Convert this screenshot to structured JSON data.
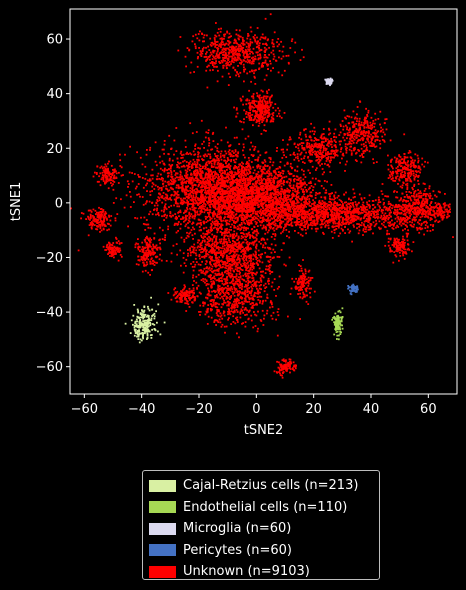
{
  "chart_data": {
    "type": "scatter",
    "title": "",
    "xlabel": "tSNE2",
    "ylabel": "tSNE1",
    "xlim": [
      -65,
      70
    ],
    "ylim": [
      -70,
      71
    ],
    "xticks": [
      -60,
      -40,
      -20,
      0,
      20,
      40,
      60
    ],
    "yticks": [
      -60,
      -40,
      -20,
      0,
      20,
      40,
      60
    ],
    "xtick_labels": [
      "−60",
      "−40",
      "−20",
      "0",
      "20",
      "40",
      "60"
    ],
    "ytick_labels": [
      "−60",
      "−40",
      "−20",
      "0",
      "20",
      "40",
      "60"
    ],
    "grid": false,
    "legend_position": "below",
    "series": [
      {
        "name": "Cajal-Retzius cells (n=213)",
        "color": "#d9f0a3",
        "n": 213,
        "clusters": [
          {
            "cx": -39.5,
            "cy": -44.5,
            "sx": 2.0,
            "sy": 3.2,
            "w": 1
          }
        ]
      },
      {
        "name": "Endothelial cells (n=110)",
        "color": "#a6d854",
        "n": 110,
        "clusters": [
          {
            "cx": 28.2,
            "cy": -44.0,
            "sx": 0.8,
            "sy": 2.2,
            "w": 1
          }
        ]
      },
      {
        "name": "Microglia (n=60)",
        "color": "#dcdaf0",
        "n": 60,
        "clusters": [
          {
            "cx": 25.5,
            "cy": 44.5,
            "sx": 0.7,
            "sy": 0.5,
            "w": 1
          }
        ]
      },
      {
        "name": "Pericytes (n=60)",
        "color": "#4472c4",
        "n": 60,
        "clusters": [
          {
            "cx": 34.0,
            "cy": -31.5,
            "sx": 0.8,
            "sy": 0.8,
            "w": 1
          }
        ]
      },
      {
        "name": "Unknown (n=9103)",
        "color": "#ff0000",
        "n": 9103,
        "clusters": [
          {
            "cx": -15,
            "cy": 5,
            "sx": 12,
            "sy": 8,
            "w": 14
          },
          {
            "cx": 2,
            "cy": 2,
            "sx": 10,
            "sy": 6,
            "w": 10
          },
          {
            "cx": 28,
            "cy": -4,
            "sx": 14,
            "sy": 3,
            "w": 8
          },
          {
            "cx": 56,
            "cy": -2,
            "sx": 4,
            "sy": 4,
            "w": 2.5
          },
          {
            "cx": 52,
            "cy": 12,
            "sx": 3,
            "sy": 3,
            "w": 1.5
          },
          {
            "cx": -7,
            "cy": 55,
            "sx": 8,
            "sy": 4,
            "w": 4
          },
          {
            "cx": 1,
            "cy": 34,
            "sx": 3,
            "sy": 3,
            "w": 2
          },
          {
            "cx": 22,
            "cy": 20,
            "sx": 5,
            "sy": 3,
            "w": 2
          },
          {
            "cx": 37,
            "cy": 25,
            "sx": 4,
            "sy": 4,
            "w": 2
          },
          {
            "cx": -8,
            "cy": -32,
            "sx": 7,
            "sy": 6,
            "w": 5
          },
          {
            "cx": -10,
            "cy": -18,
            "sx": 8,
            "sy": 5,
            "w": 5
          },
          {
            "cx": -38,
            "cy": -18,
            "sx": 2,
            "sy": 3,
            "w": 1.2
          },
          {
            "cx": -55,
            "cy": -6,
            "sx": 2.5,
            "sy": 2,
            "w": 1
          },
          {
            "cx": -52,
            "cy": 10,
            "sx": 2,
            "sy": 2,
            "w": 0.8
          },
          {
            "cx": -50,
            "cy": -17,
            "sx": 1.5,
            "sy": 1.5,
            "w": 0.6
          },
          {
            "cx": -25,
            "cy": -34,
            "sx": 2,
            "sy": 1.5,
            "w": 0.8
          },
          {
            "cx": 16,
            "cy": -30,
            "sx": 1.5,
            "sy": 3,
            "w": 0.8
          },
          {
            "cx": 10,
            "cy": -60,
            "sx": 1.5,
            "sy": 1.5,
            "w": 0.7
          },
          {
            "cx": 50,
            "cy": -16,
            "sx": 2,
            "sy": 2,
            "w": 0.8
          },
          {
            "cx": 65,
            "cy": -3,
            "sx": 1.5,
            "sy": 1.5,
            "w": 0.5
          }
        ]
      }
    ]
  }
}
